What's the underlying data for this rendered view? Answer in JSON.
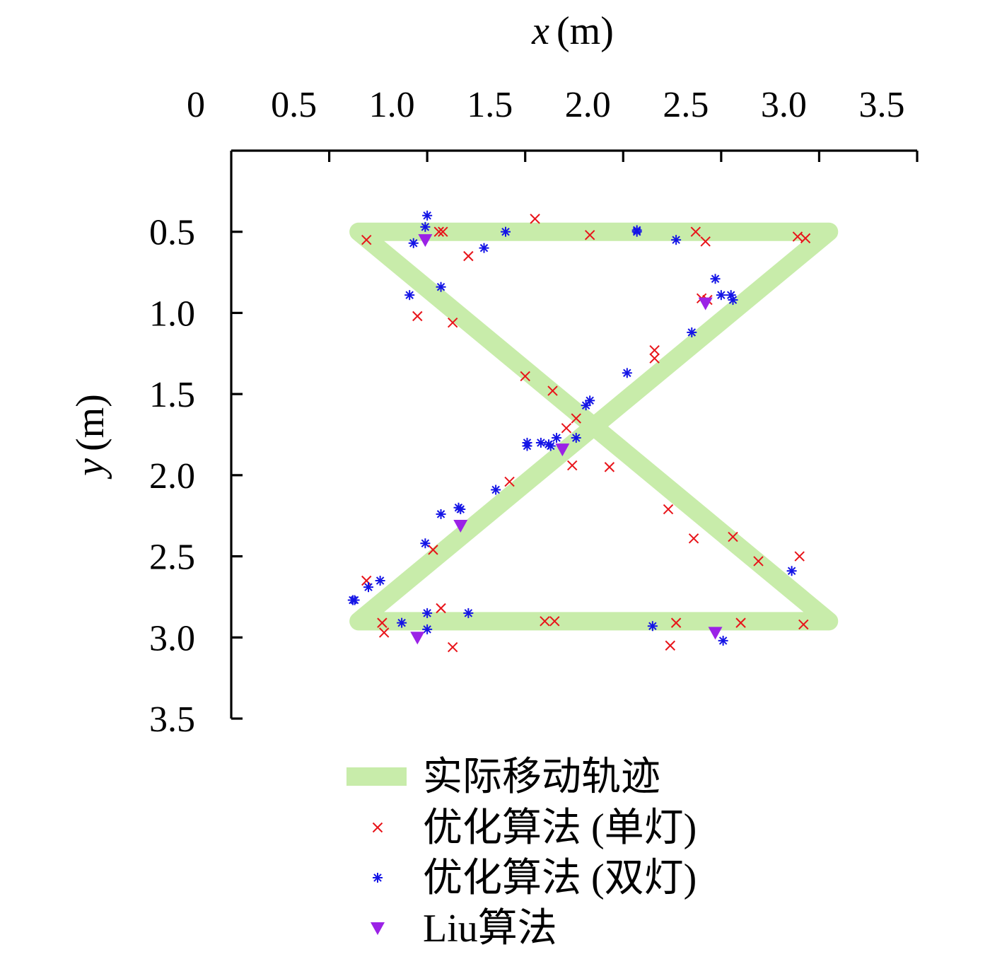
{
  "chart_data": {
    "type": "scatter",
    "xlabel": "x (m)",
    "xlabel_var": "x",
    "xlabel_unit": "(m)",
    "ylabel": "y (m)",
    "ylabel_var": "y",
    "ylabel_unit": "(m)",
    "xlim": [
      0,
      3.5
    ],
    "ylim": [
      0,
      3.5
    ],
    "y_inverted": true,
    "x_axis_position": "top",
    "x_ticks": [
      0,
      0.5,
      1.0,
      1.5,
      2.0,
      2.5,
      3.0,
      3.5
    ],
    "x_tick_labels": [
      "0",
      "0.5",
      "1.0",
      "1.5",
      "2.0",
      "2.5",
      "3.0",
      "3.5"
    ],
    "y_ticks": [
      0.5,
      1.0,
      1.5,
      2.0,
      2.5,
      3.0,
      3.5
    ],
    "y_tick_labels": [
      "0.5",
      "1.0",
      "1.5",
      "2.0",
      "2.5",
      "3.0",
      "3.5"
    ],
    "grid": false,
    "legend_position": "bottom-center",
    "series": [
      {
        "name": "实际移动轨迹",
        "kind": "path",
        "color": "#c8ecaa",
        "x": [
          0.65,
          3.05,
          0.65,
          3.05,
          0.65
        ],
        "y": [
          0.5,
          0.5,
          2.9,
          2.9,
          0.5
        ]
      },
      {
        "name": "优化算法 (单灯)",
        "kind": "marker",
        "marker": "x",
        "color": "#e8141a",
        "points": [
          [
            0.69,
            0.55
          ],
          [
            1.06,
            0.5
          ],
          [
            1.08,
            0.5
          ],
          [
            1.21,
            0.65
          ],
          [
            1.55,
            0.42
          ],
          [
            1.83,
            0.52
          ],
          [
            2.37,
            0.5
          ],
          [
            2.42,
            0.56
          ],
          [
            2.89,
            0.53
          ],
          [
            2.93,
            0.54
          ],
          [
            0.95,
            1.02
          ],
          [
            1.13,
            1.06
          ],
          [
            2.16,
            1.23
          ],
          [
            2.16,
            1.28
          ],
          [
            2.4,
            0.91
          ],
          [
            2.43,
            0.92
          ],
          [
            1.5,
            1.39
          ],
          [
            1.64,
            1.48
          ],
          [
            1.71,
            1.71
          ],
          [
            1.76,
            1.65
          ],
          [
            1.74,
            1.94
          ],
          [
            1.93,
            1.95
          ],
          [
            1.42,
            2.04
          ],
          [
            2.23,
            2.21
          ],
          [
            2.36,
            2.39
          ],
          [
            2.56,
            2.38
          ],
          [
            2.69,
            2.53
          ],
          [
            2.9,
            2.5
          ],
          [
            1.03,
            2.46
          ],
          [
            0.69,
            2.65
          ],
          [
            0.77,
            2.91
          ],
          [
            0.78,
            2.97
          ],
          [
            1.07,
            2.82
          ],
          [
            1.13,
            3.06
          ],
          [
            1.6,
            2.9
          ],
          [
            1.65,
            2.9
          ],
          [
            2.24,
            3.05
          ],
          [
            2.27,
            2.91
          ],
          [
            2.6,
            2.91
          ],
          [
            2.92,
            2.92
          ]
        ]
      },
      {
        "name": "优化算法 (双灯)",
        "kind": "marker",
        "marker": "asterisk",
        "color": "#1414e6",
        "points": [
          [
            1.0,
            0.4
          ],
          [
            0.99,
            0.47
          ],
          [
            0.93,
            0.57
          ],
          [
            1.29,
            0.6
          ],
          [
            1.4,
            0.5
          ],
          [
            2.07,
            0.49
          ],
          [
            2.07,
            0.5
          ],
          [
            2.27,
            0.55
          ],
          [
            0.91,
            0.89
          ],
          [
            1.07,
            0.84
          ],
          [
            2.47,
            0.79
          ],
          [
            2.5,
            0.89
          ],
          [
            2.55,
            0.89
          ],
          [
            2.56,
            0.92
          ],
          [
            2.35,
            1.12
          ],
          [
            2.02,
            1.37
          ],
          [
            1.81,
            1.57
          ],
          [
            1.83,
            1.54
          ],
          [
            1.51,
            1.8
          ],
          [
            1.51,
            1.82
          ],
          [
            1.58,
            1.8
          ],
          [
            1.62,
            1.81
          ],
          [
            1.63,
            1.82
          ],
          [
            1.66,
            1.77
          ],
          [
            1.76,
            1.77
          ],
          [
            1.35,
            2.09
          ],
          [
            1.16,
            2.2
          ],
          [
            1.17,
            2.21
          ],
          [
            1.07,
            2.24
          ],
          [
            0.99,
            2.42
          ],
          [
            0.76,
            2.65
          ],
          [
            0.7,
            2.69
          ],
          [
            0.62,
            2.77
          ],
          [
            0.63,
            2.77
          ],
          [
            0.87,
            2.91
          ],
          [
            1.0,
            2.85
          ],
          [
            1.0,
            2.95
          ],
          [
            1.21,
            2.85
          ],
          [
            2.15,
            2.93
          ],
          [
            2.51,
            3.02
          ],
          [
            2.86,
            2.59
          ]
        ]
      },
      {
        "name": "Liu算法",
        "kind": "marker",
        "marker": "triangle-down",
        "color": "#9b22e6",
        "points": [
          [
            0.99,
            0.55
          ],
          [
            2.42,
            0.94
          ],
          [
            1.69,
            1.84
          ],
          [
            1.17,
            2.31
          ],
          [
            0.95,
            3.0
          ],
          [
            2.47,
            2.97
          ]
        ]
      }
    ]
  }
}
